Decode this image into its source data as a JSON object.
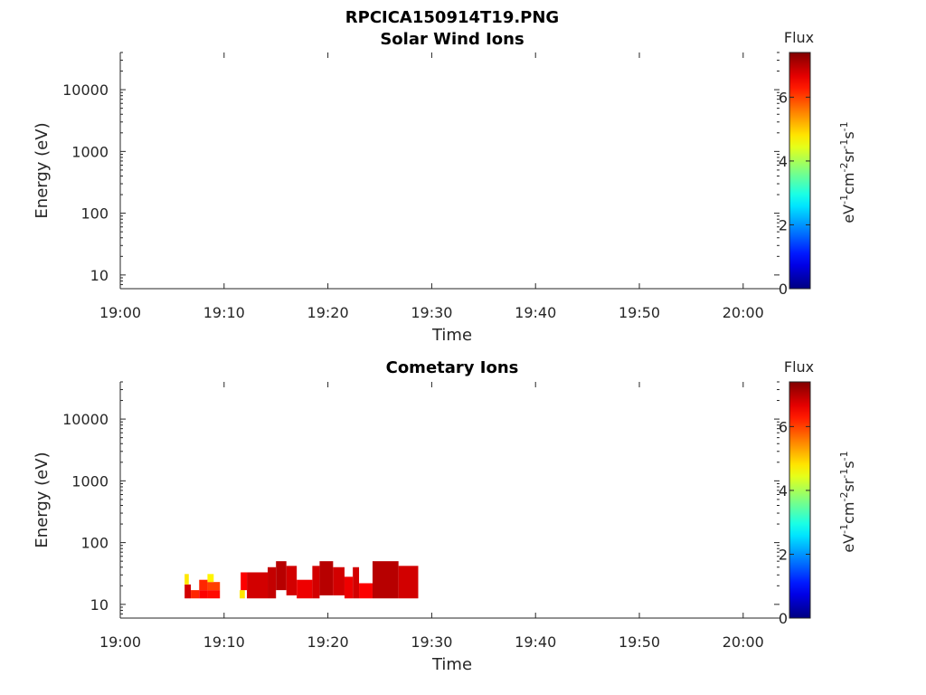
{
  "figure_title": "RPCICA150914T19.PNG",
  "chart_data": [
    {
      "type": "heatmap",
      "title": "Solar Wind Ions",
      "xlabel": "Time",
      "ylabel": "Energy (eV)",
      "x_ticks": [
        "19:00",
        "19:10",
        "19:20",
        "19:30",
        "19:40",
        "19:50",
        "20:00"
      ],
      "xlim_minutes": [
        0,
        63.5
      ],
      "y_scale": "log",
      "y_ticks": [
        10,
        100,
        1000,
        10000
      ],
      "ylim": [
        6,
        40000
      ],
      "colorbar": {
        "label": "Flux",
        "units": "eV-1cm-2sr-1s-1",
        "ticks": [
          0,
          2,
          4,
          6
        ],
        "range": [
          0,
          7.4
        ],
        "colormap": "jet"
      },
      "cells": []
    },
    {
      "type": "heatmap",
      "title": "Cometary Ions",
      "xlabel": "Time",
      "ylabel": "Energy (eV)",
      "x_ticks": [
        "19:00",
        "19:10",
        "19:20",
        "19:30",
        "19:40",
        "19:50",
        "20:00"
      ],
      "xlim_minutes": [
        0,
        63.5
      ],
      "y_scale": "log",
      "y_ticks": [
        10,
        100,
        1000,
        10000
      ],
      "ylim": [
        6,
        40000
      ],
      "colorbar": {
        "label": "Flux",
        "units": "eV-1cm-2sr-1s-1",
        "ticks": [
          0,
          2,
          4,
          6
        ],
        "range": [
          0,
          7.4
        ],
        "colormap": "jet"
      },
      "cells": [
        {
          "t0": 6.2,
          "t1": 6.8,
          "e0": 12.5,
          "e1": 21,
          "v": 6.8
        },
        {
          "t0": 6.2,
          "t1": 6.6,
          "e0": 21,
          "e1": 31,
          "v": 4.8
        },
        {
          "t0": 6.8,
          "t1": 7.6,
          "e0": 12.5,
          "e1": 17,
          "v": 6.2
        },
        {
          "t0": 7.6,
          "t1": 8.4,
          "e0": 12.5,
          "e1": 17,
          "v": 6.5
        },
        {
          "t0": 7.6,
          "t1": 8.4,
          "e0": 17,
          "e1": 25,
          "v": 6.2
        },
        {
          "t0": 8.4,
          "t1": 9.6,
          "e0": 12.5,
          "e1": 17,
          "v": 6.4
        },
        {
          "t0": 8.4,
          "t1": 9.6,
          "e0": 17,
          "e1": 23,
          "v": 6.0
        },
        {
          "t0": 8.4,
          "t1": 9.0,
          "e0": 23,
          "e1": 31,
          "v": 4.7
        },
        {
          "t0": 11.5,
          "t1": 12.0,
          "e0": 12.5,
          "e1": 17,
          "v": 4.8
        },
        {
          "t0": 11.6,
          "t1": 12.2,
          "e0": 17,
          "e1": 33,
          "v": 6.5
        },
        {
          "t0": 12.2,
          "t1": 14.2,
          "e0": 12.5,
          "e1": 33,
          "v": 6.8
        },
        {
          "t0": 14.2,
          "t1": 15.0,
          "e0": 12.5,
          "e1": 40,
          "v": 6.9
        },
        {
          "t0": 15.0,
          "t1": 16.0,
          "e0": 17,
          "e1": 50,
          "v": 7.0
        },
        {
          "t0": 16.0,
          "t1": 17.0,
          "e0": 14,
          "e1": 42,
          "v": 6.8
        },
        {
          "t0": 17.0,
          "t1": 18.5,
          "e0": 12.5,
          "e1": 25,
          "v": 6.6
        },
        {
          "t0": 18.5,
          "t1": 19.2,
          "e0": 12.5,
          "e1": 42,
          "v": 6.8
        },
        {
          "t0": 19.2,
          "t1": 20.5,
          "e0": 14,
          "e1": 50,
          "v": 7.0
        },
        {
          "t0": 20.5,
          "t1": 21.6,
          "e0": 14,
          "e1": 40,
          "v": 6.8
        },
        {
          "t0": 21.6,
          "t1": 22.4,
          "e0": 12.5,
          "e1": 28,
          "v": 6.6
        },
        {
          "t0": 22.4,
          "t1": 23.0,
          "e0": 12.5,
          "e1": 40,
          "v": 6.8
        },
        {
          "t0": 23.0,
          "t1": 24.3,
          "e0": 12.5,
          "e1": 22,
          "v": 6.5
        },
        {
          "t0": 24.3,
          "t1": 26.8,
          "e0": 12.5,
          "e1": 50,
          "v": 7.0
        },
        {
          "t0": 26.8,
          "t1": 28.7,
          "e0": 12.5,
          "e1": 42,
          "v": 6.8
        }
      ]
    }
  ]
}
